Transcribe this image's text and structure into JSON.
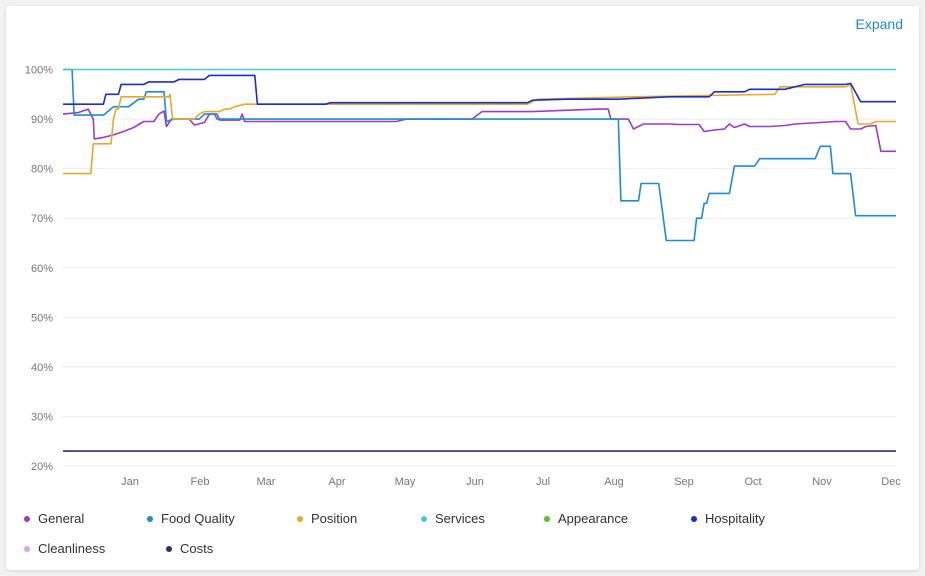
{
  "header": {
    "expand_label": "Expand"
  },
  "chart_data": {
    "type": "line",
    "x_labels": [
      "Jan",
      "Feb",
      "Mar",
      "Apr",
      "May",
      "Jun",
      "Jul",
      "Aug",
      "Sep",
      "Oct",
      "Nov",
      "Dec"
    ],
    "y_ticks": [
      "20%",
      "30%",
      "40%",
      "50%",
      "60%",
      "70%",
      "80%",
      "90%",
      "100%"
    ],
    "ylim": [
      20,
      100
    ],
    "grid": true,
    "legend_position": "bottom",
    "series": [
      {
        "name": "General",
        "color": "#9c3bc9",
        "points": [
          [
            0,
            91
          ],
          [
            0.3,
            91.3
          ],
          [
            0.5,
            92
          ],
          [
            0.6,
            90
          ],
          [
            0.62,
            86
          ],
          [
            0.8,
            86.3
          ],
          [
            1.0,
            86.8
          ],
          [
            1.2,
            87.5
          ],
          [
            1.4,
            88.3
          ],
          [
            1.6,
            89.5
          ],
          [
            1.8,
            89.5
          ],
          [
            1.9,
            91
          ],
          [
            2.0,
            91.6
          ],
          [
            2.05,
            88.5
          ],
          [
            2.15,
            90
          ],
          [
            2.5,
            90
          ],
          [
            2.6,
            88.8
          ],
          [
            2.8,
            89.3
          ],
          [
            2.9,
            91
          ],
          [
            3.05,
            91
          ],
          [
            3.1,
            89.8
          ],
          [
            3.5,
            89.8
          ],
          [
            3.55,
            91
          ],
          [
            3.6,
            89.5
          ],
          [
            6.6,
            89.5
          ],
          [
            6.8,
            90
          ],
          [
            8.1,
            90
          ],
          [
            8.3,
            91.5
          ],
          [
            9.3,
            91.5
          ],
          [
            10.6,
            92
          ],
          [
            10.8,
            92
          ],
          [
            10.85,
            90
          ],
          [
            11.2,
            90
          ],
          [
            11.3,
            88
          ],
          [
            11.5,
            89
          ],
          [
            12.0,
            89
          ],
          [
            12.2,
            88.9
          ],
          [
            12.6,
            88.9
          ],
          [
            12.7,
            87.5
          ],
          [
            12.9,
            87.8
          ],
          [
            13.1,
            88
          ],
          [
            13.2,
            89
          ],
          [
            13.3,
            88.3
          ],
          [
            13.5,
            89
          ],
          [
            13.6,
            88.5
          ],
          [
            14.0,
            88.5
          ],
          [
            14.3,
            88.7
          ],
          [
            14.5,
            89
          ],
          [
            15.0,
            89.3
          ],
          [
            15.3,
            89.5
          ],
          [
            15.5,
            89.5
          ],
          [
            15.6,
            88
          ],
          [
            15.8,
            88
          ],
          [
            15.9,
            88.5
          ],
          [
            16.1,
            88.7
          ],
          [
            16.2,
            83.5
          ],
          [
            16.5,
            83.5
          ]
        ]
      },
      {
        "name": "Food Quality",
        "color": "#1e8bd8",
        "points": [
          [
            0,
            100
          ],
          [
            0.18,
            100
          ],
          [
            0.22,
            90.8
          ],
          [
            0.8,
            90.8
          ],
          [
            1.0,
            92.5
          ],
          [
            1.3,
            92.5
          ],
          [
            1.5,
            94
          ],
          [
            1.6,
            94
          ],
          [
            1.65,
            95.5
          ],
          [
            2.0,
            95.5
          ],
          [
            2.05,
            89.5
          ],
          [
            2.2,
            90
          ],
          [
            2.7,
            90
          ],
          [
            2.8,
            91
          ],
          [
            3.0,
            91
          ],
          [
            3.05,
            90
          ],
          [
            11.0,
            90
          ],
          [
            11.05,
            73.5
          ],
          [
            11.4,
            73.5
          ],
          [
            11.45,
            77
          ],
          [
            11.8,
            77
          ],
          [
            11.95,
            65.5
          ],
          [
            12.5,
            65.5
          ],
          [
            12.55,
            70
          ],
          [
            12.65,
            70
          ],
          [
            12.7,
            73
          ],
          [
            12.75,
            73
          ],
          [
            12.8,
            75
          ],
          [
            13.2,
            75
          ],
          [
            13.3,
            80.5
          ],
          [
            13.7,
            80.5
          ],
          [
            13.8,
            82
          ],
          [
            14.9,
            82
          ],
          [
            15.0,
            84.5
          ],
          [
            15.2,
            84.5
          ],
          [
            15.25,
            79
          ],
          [
            15.6,
            79
          ],
          [
            15.7,
            70.5
          ],
          [
            16.5,
            70.5
          ]
        ]
      },
      {
        "name": "Position",
        "color": "#e8a92a",
        "points": [
          [
            0,
            79
          ],
          [
            0.55,
            79
          ],
          [
            0.6,
            85
          ],
          [
            0.95,
            85
          ],
          [
            1.0,
            90
          ],
          [
            1.05,
            92
          ],
          [
            1.1,
            92
          ],
          [
            1.15,
            94.5
          ],
          [
            2.1,
            94.5
          ],
          [
            2.12,
            95
          ],
          [
            2.17,
            90
          ],
          [
            2.6,
            90
          ],
          [
            2.7,
            91
          ],
          [
            2.8,
            91.5
          ],
          [
            3.1,
            91.5
          ],
          [
            3.2,
            92
          ],
          [
            3.3,
            92
          ],
          [
            3.4,
            92.5
          ],
          [
            3.6,
            93
          ],
          [
            9.2,
            93
          ],
          [
            9.4,
            94
          ],
          [
            11.3,
            94.5
          ],
          [
            14.1,
            95
          ],
          [
            14.2,
            96.5
          ],
          [
            15.5,
            96.5
          ],
          [
            15.6,
            97
          ],
          [
            15.75,
            89
          ],
          [
            16.0,
            89
          ],
          [
            16.1,
            89.5
          ],
          [
            16.5,
            89.5
          ]
        ]
      },
      {
        "name": "Services",
        "color": "#4bc8d6",
        "points": [
          [
            0,
            100
          ],
          [
            16.5,
            100
          ]
        ]
      },
      {
        "name": "Appearance",
        "color": "#52c41a",
        "points": []
      },
      {
        "name": "Hospitality",
        "color": "#1a2fc9",
        "points": [
          [
            0,
            93
          ],
          [
            0.8,
            93
          ],
          [
            0.85,
            95
          ],
          [
            1.1,
            95
          ],
          [
            1.15,
            97
          ],
          [
            1.6,
            97
          ],
          [
            1.7,
            97.5
          ],
          [
            2.2,
            97.5
          ],
          [
            2.3,
            98
          ],
          [
            2.8,
            98
          ],
          [
            2.9,
            98.8
          ],
          [
            3.8,
            98.8
          ],
          [
            3.85,
            93
          ],
          [
            5.2,
            93
          ],
          [
            5.3,
            93.3
          ],
          [
            6.5,
            93.3
          ],
          [
            9.2,
            93.3
          ],
          [
            9.3,
            93.8
          ],
          [
            10.0,
            94
          ],
          [
            11.0,
            94
          ],
          [
            12.0,
            94.5
          ],
          [
            12.8,
            94.5
          ],
          [
            12.9,
            95.5
          ],
          [
            13.5,
            95.5
          ],
          [
            13.6,
            96
          ],
          [
            14.3,
            96
          ],
          [
            14.5,
            96.5
          ],
          [
            14.7,
            97
          ],
          [
            15.5,
            97
          ],
          [
            15.6,
            97.2
          ],
          [
            15.8,
            93.5
          ],
          [
            16.5,
            93.5
          ]
        ]
      },
      {
        "name": "Cleanliness",
        "color": "#d9a6ee",
        "points": []
      },
      {
        "name": "Costs",
        "color": "#2b2f6e",
        "points": [
          [
            0,
            23
          ],
          [
            16.5,
            23
          ]
        ]
      }
    ]
  }
}
